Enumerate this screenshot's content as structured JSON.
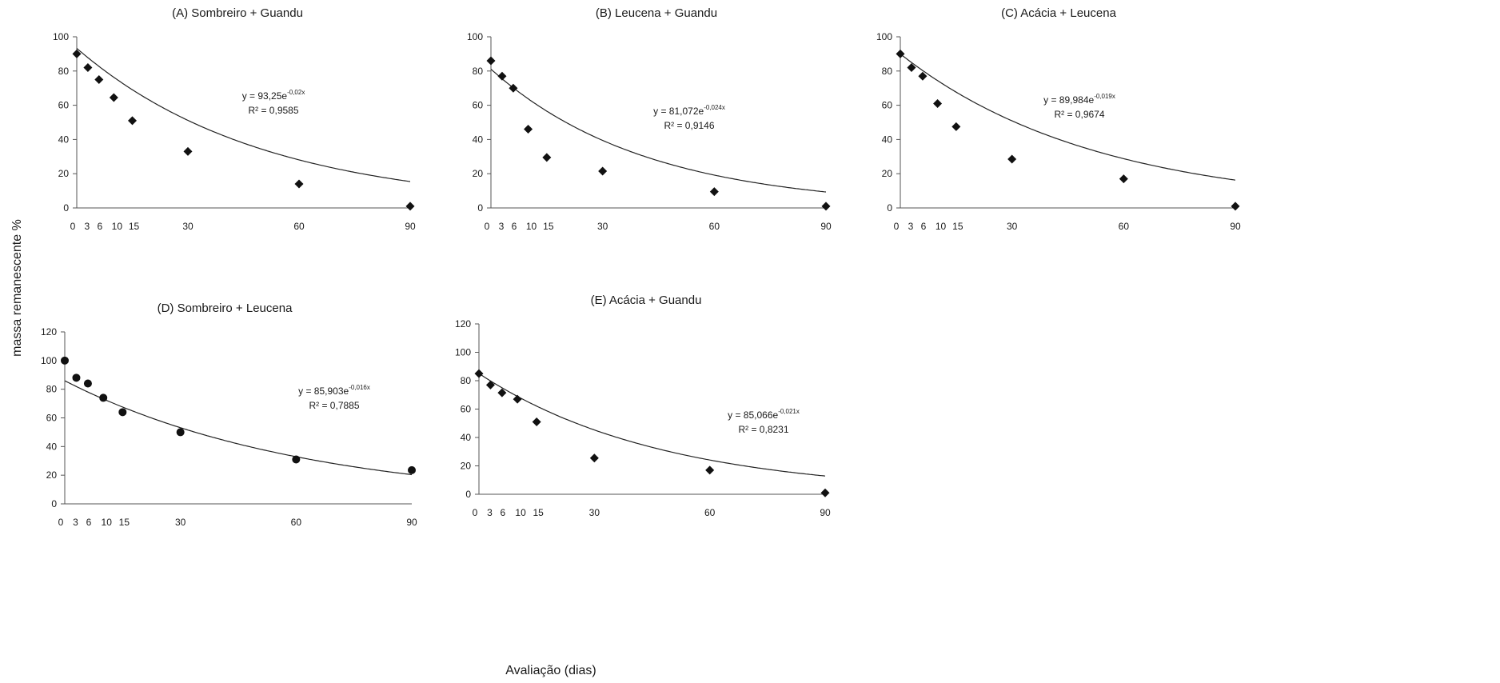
{
  "figure": {
    "ylabel": "massa remanescente %",
    "xlabel": "Avaliação (dias)"
  },
  "chart_data": [
    {
      "type": "scatter",
      "title": "(A) Sombreiro + Guandu",
      "x": [
        0,
        3,
        6,
        10,
        15,
        30,
        60,
        90
      ],
      "y": [
        90,
        82,
        75,
        64.5,
        51,
        33,
        14,
        1
      ],
      "ylim": [
        0,
        100
      ],
      "yticks": [
        0,
        20,
        40,
        60,
        80,
        100
      ],
      "xticks": [
        0,
        3,
        6,
        10,
        15,
        30,
        60,
        90
      ],
      "fit": {
        "a": 93.25,
        "b": -0.02
      },
      "equation_prefix": "y = 93,25e",
      "equation_exponent": "-0,02x",
      "r2_label": "R² = 0,9585"
    },
    {
      "type": "scatter",
      "title": "(B) Leucena + Guandu",
      "x": [
        0,
        3,
        6,
        10,
        15,
        30,
        60,
        90
      ],
      "y": [
        86,
        77,
        70,
        46,
        29.5,
        21.5,
        9.5,
        1
      ],
      "ylim": [
        0,
        100
      ],
      "yticks": [
        0,
        20,
        40,
        60,
        80,
        100
      ],
      "xticks": [
        0,
        3,
        6,
        10,
        15,
        30,
        60,
        90
      ],
      "fit": {
        "a": 81.072,
        "b": -0.024
      },
      "equation_prefix": "y = 81,072e",
      "equation_exponent": "-0,024x",
      "r2_label": "R² = 0,9146"
    },
    {
      "type": "scatter",
      "title": "(C) Acácia + Leucena",
      "x": [
        0,
        3,
        6,
        10,
        15,
        30,
        60,
        90
      ],
      "y": [
        90,
        82,
        77,
        61,
        47.5,
        28.5,
        17,
        1
      ],
      "ylim": [
        0,
        100
      ],
      "yticks": [
        0,
        20,
        40,
        60,
        80,
        100
      ],
      "xticks": [
        0,
        3,
        6,
        10,
        15,
        30,
        60,
        90
      ],
      "fit": {
        "a": 89.984,
        "b": -0.019
      },
      "equation_prefix": "y = 89,984e",
      "equation_exponent": "-0,019x",
      "r2_label": "R² = 0,9674"
    },
    {
      "type": "scatter",
      "title": "(D) Sombreiro + Leucena",
      "x": [
        0,
        3,
        6,
        10,
        15,
        30,
        60,
        90
      ],
      "y": [
        100,
        88,
        84,
        74,
        64,
        50,
        31,
        23.5
      ],
      "ylim": [
        0,
        120
      ],
      "yticks": [
        0,
        20,
        40,
        60,
        80,
        100,
        120
      ],
      "xticks": [
        0,
        3,
        6,
        10,
        15,
        30,
        60,
        90
      ],
      "fit": {
        "a": 85.903,
        "b": -0.016
      },
      "equation_prefix": "y = 85,903e",
      "equation_exponent": "-0,016x",
      "r2_label": "R² = 0,7885"
    },
    {
      "type": "scatter",
      "title": "(E) Acácia + Guandu",
      "x": [
        0,
        3,
        6,
        10,
        15,
        30,
        60,
        90
      ],
      "y": [
        85,
        77,
        71.5,
        67,
        51,
        25.5,
        17,
        1
      ],
      "ylim": [
        0,
        120
      ],
      "yticks": [
        0,
        20,
        40,
        60,
        80,
        100,
        120
      ],
      "xticks": [
        0,
        3,
        6,
        10,
        15,
        30,
        60,
        90
      ],
      "fit": {
        "a": 85.066,
        "b": -0.021
      },
      "equation_prefix": "y = 85,066e",
      "equation_exponent": "-0,021x",
      "r2_label": "R² = 0,8231"
    }
  ]
}
